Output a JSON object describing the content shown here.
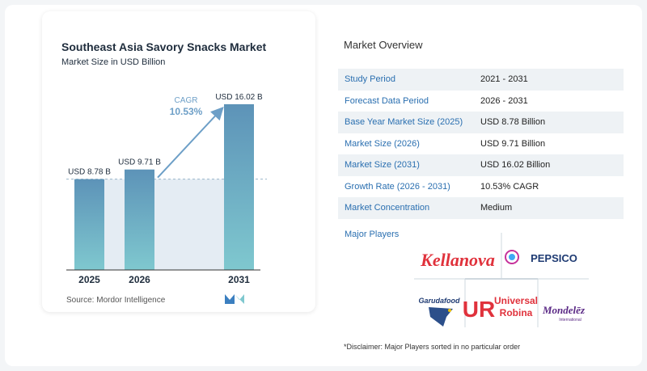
{
  "chart_data": {
    "type": "bar",
    "title": "Southeast Asia Savory Snacks Market",
    "subtitle": "Market Size in USD Billion",
    "categories": [
      "2025",
      "2026",
      "2031"
    ],
    "values": [
      8.78,
      9.71,
      16.02
    ],
    "value_labels": [
      "USD 8.78 B",
      "USD 9.71 B",
      "USD 16.02 B"
    ],
    "cagr_label": "CAGR",
    "cagr_value": "10.53%",
    "ylim": [
      0,
      17.5
    ],
    "grid": false,
    "bar_color_top": "#5d93b8",
    "bar_color_bottom": "#7fc8cf"
  },
  "source": "Source:  Mordor Intelligence",
  "brand_logo": "mordor-intelligence-logo",
  "overview": {
    "title": "Market Overview",
    "rows": [
      {
        "key": "Study Period",
        "value": "2021 - 2031"
      },
      {
        "key": "Forecast Data Period",
        "value": "2026 - 2031"
      },
      {
        "key": "Base Year Market Size (2025)",
        "value": "USD 8.78 Billion"
      },
      {
        "key": "Market Size (2026)",
        "value": "USD 9.71 Billion"
      },
      {
        "key": "Market Size (2031)",
        "value": "USD 16.02 Billion"
      },
      {
        "key": "Growth Rate (2026 - 2031)",
        "value": "10.53% CAGR"
      },
      {
        "key": "Market Concentration",
        "value": "Medium"
      }
    ]
  },
  "players": {
    "title": "Major Players",
    "logos": {
      "kellanova": "Kellanova",
      "pepsico": "PEPSICO",
      "garudafood": "Garudafood",
      "urc_1": "Universal",
      "urc_2": "Robina",
      "mondelez": "Mondelēz",
      "mondelez_sub": "International"
    }
  },
  "disclaimer": "*Disclaimer: Major Players sorted in no particular order"
}
